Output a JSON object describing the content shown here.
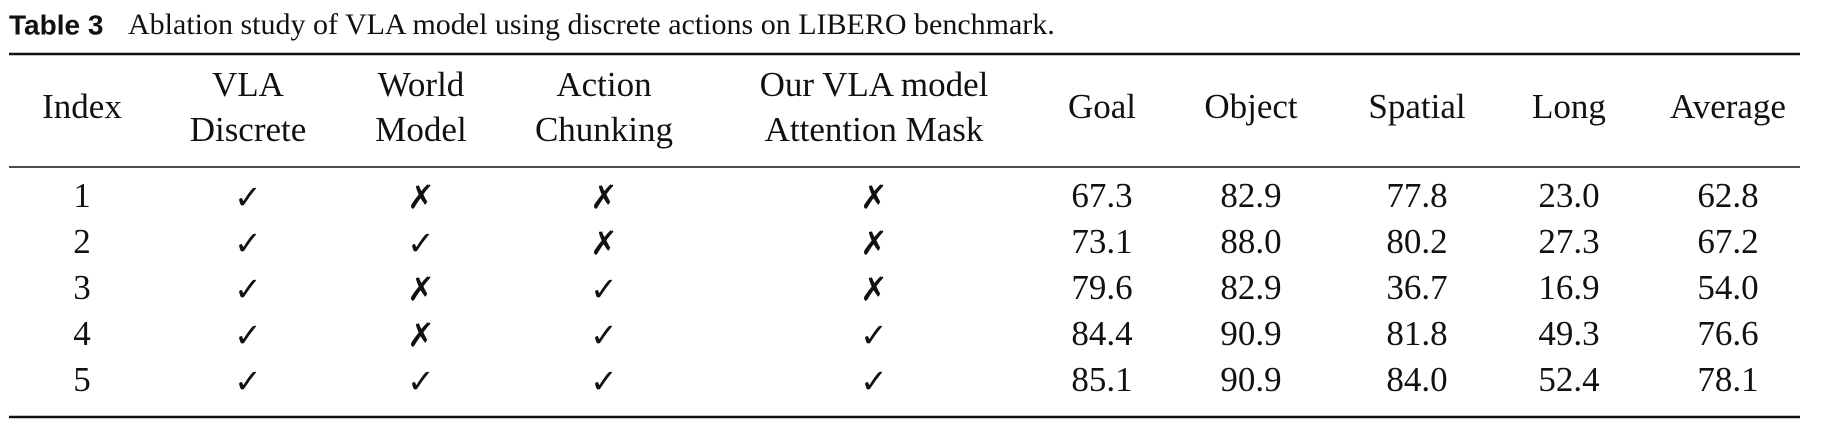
{
  "caption": {
    "label": "Table 3",
    "text": "Ablation study of VLA model using discrete actions on LIBERO benchmark."
  },
  "table": {
    "headers": [
      [
        "Index"
      ],
      [
        "VLA",
        "Discrete"
      ],
      [
        "World",
        "Model"
      ],
      [
        "Action",
        "Chunking"
      ],
      [
        "Our VLA model",
        "Attention Mask"
      ],
      [
        "Goal"
      ],
      [
        "Object"
      ],
      [
        "Spatial"
      ],
      [
        "Long"
      ],
      [
        "Average"
      ]
    ],
    "rows": [
      [
        "1",
        "✓",
        "✗",
        "✗",
        "✗",
        "67.3",
        "82.9",
        "77.8",
        "23.0",
        "62.8"
      ],
      [
        "2",
        "✓",
        "✓",
        "✗",
        "✗",
        "73.1",
        "88.0",
        "80.2",
        "27.3",
        "67.2"
      ],
      [
        "3",
        "✓",
        "✗",
        "✓",
        "✗",
        "79.6",
        "82.9",
        "36.7",
        "16.9",
        "54.0"
      ],
      [
        "4",
        "✓",
        "✗",
        "✓",
        "✓",
        "84.4",
        "90.9",
        "81.8",
        "49.3",
        "76.6"
      ],
      [
        "5",
        "✓",
        "✓",
        "✓",
        "✓",
        "85.1",
        "90.9",
        "84.0",
        "52.4",
        "78.1"
      ]
    ]
  }
}
